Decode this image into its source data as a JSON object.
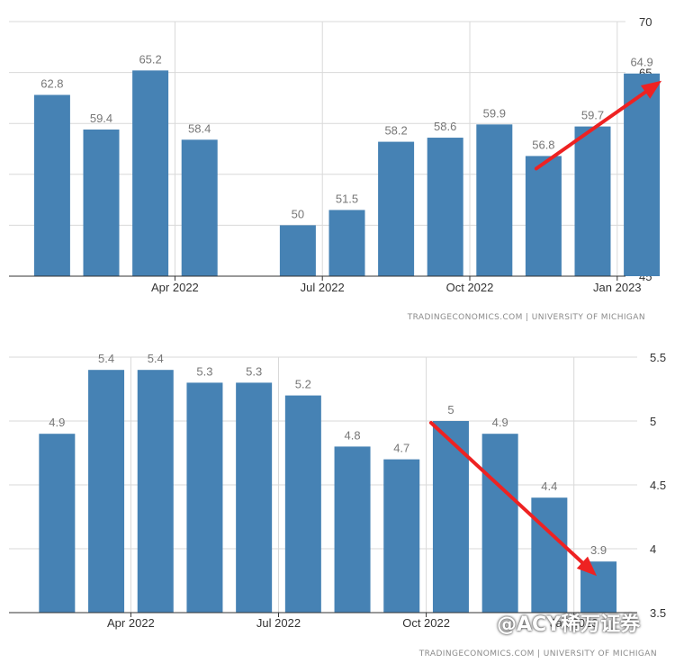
{
  "colors": {
    "bar": "#4682b4",
    "grid": "#d9d9d9",
    "axis": "#333333",
    "arrow": "#ee2222"
  },
  "watermark": "@ACY稀万证券",
  "chart_data": [
    {
      "type": "bar",
      "categories": [
        "2022-01",
        "2022-02",
        "2022-03",
        "2022-04",
        "2022-05",
        "2022-06",
        "2022-07",
        "2022-08",
        "2022-09",
        "2022-10",
        "2022-11",
        "2022-12",
        "2023-01"
      ],
      "values": [
        62.8,
        59.4,
        65.2,
        58.4,
        null,
        50,
        51.5,
        58.2,
        58.6,
        59.9,
        56.8,
        59.7,
        64.9
      ],
      "value_labels": [
        "62.8",
        "59.4",
        "65.2",
        "58.4",
        "",
        "50",
        "51.5",
        "58.2",
        "58.6",
        "59.9",
        "56.8",
        "59.7",
        "64.9"
      ],
      "x_ticks": [
        "Apr 2022",
        "Jul 2022",
        "Oct 2022",
        "Jan 2023"
      ],
      "ylim": [
        45,
        70
      ],
      "y_ticks": [
        "45",
        "50",
        "55",
        "60",
        "65",
        "70"
      ],
      "y_axis_side": "right",
      "grid": true,
      "annotation_arrow": {
        "from_value": 56.8,
        "to_value": 64.9,
        "direction": "up"
      },
      "source": "TRADINGECONOMICS.COM | UNIVERSITY OF MICHIGAN"
    },
    {
      "type": "bar",
      "categories": [
        "2022-02",
        "2022-03",
        "2022-04",
        "2022-05",
        "2022-06",
        "2022-07",
        "2022-08",
        "2022-09",
        "2022-10",
        "2022-11",
        "2022-12",
        "2023-01"
      ],
      "values": [
        4.9,
        5.4,
        5.4,
        5.3,
        5.3,
        5.2,
        4.8,
        4.7,
        5,
        4.9,
        4.4,
        3.9
      ],
      "value_labels": [
        "4.9",
        "5.4",
        "5.4",
        "5.3",
        "5.3",
        "5.2",
        "4.8",
        "4.7",
        "5",
        "4.9",
        "4.4",
        "3.9"
      ],
      "x_ticks": [
        "Apr 2022",
        "Jul 2022",
        "Oct 2022",
        "Jan 2023"
      ],
      "ylim": [
        3.5,
        5.5
      ],
      "y_ticks": [
        "3.5",
        "4",
        "4.5",
        "5",
        "5.5"
      ],
      "y_axis_side": "right",
      "grid": true,
      "annotation_arrow": {
        "from_value": 5,
        "to_value": 3.9,
        "direction": "down"
      },
      "source": "TRADINGECONOMICS.COM | UNIVERSITY OF MICHIGAN"
    }
  ]
}
